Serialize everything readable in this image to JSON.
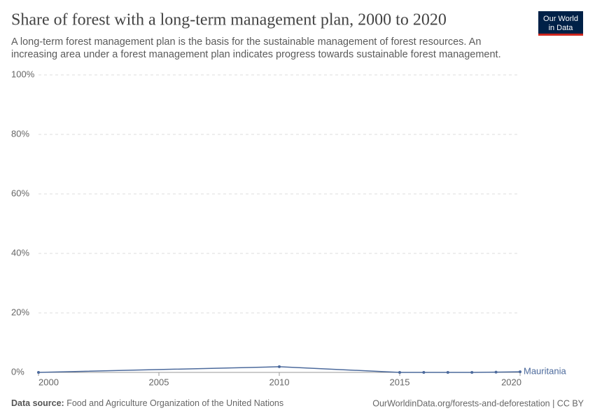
{
  "chart_data": {
    "type": "line",
    "title": "Share of forest with a long-term management plan, 2000 to 2020",
    "subtitle": [
      "A long-term forest management plan is the basis for the sustainable management of forest resources. An",
      "increasing area under a forest management plan indicates progress towards sustainable forest management."
    ],
    "x": [
      2000,
      2010,
      2015,
      2016,
      2017,
      2018,
      2019,
      2020
    ],
    "series": [
      {
        "name": "Mauritania",
        "color": "#4c6a9c",
        "values": [
          0,
          1.9,
          0,
          0,
          0,
          0,
          0.1,
          0.2
        ]
      }
    ],
    "xlim": [
      2000,
      2020
    ],
    "xticks": [
      2000,
      2005,
      2010,
      2015,
      2020
    ],
    "ylim": [
      0,
      100
    ],
    "yticks": [
      {
        "value": 0,
        "label": "0%"
      },
      {
        "value": 20,
        "label": "20%"
      },
      {
        "value": 40,
        "label": "40%"
      },
      {
        "value": 60,
        "label": "60%"
      },
      {
        "value": 80,
        "label": "80%"
      },
      {
        "value": 100,
        "label": "100%"
      }
    ],
    "grid": true
  },
  "footer": {
    "source_label": "Data source:",
    "source": "Food and Agriculture Organization of the United Nations",
    "license": "OurWorldinData.org/forests-and-deforestation | CC BY"
  },
  "logo": [
    "Our World",
    "in Data"
  ]
}
